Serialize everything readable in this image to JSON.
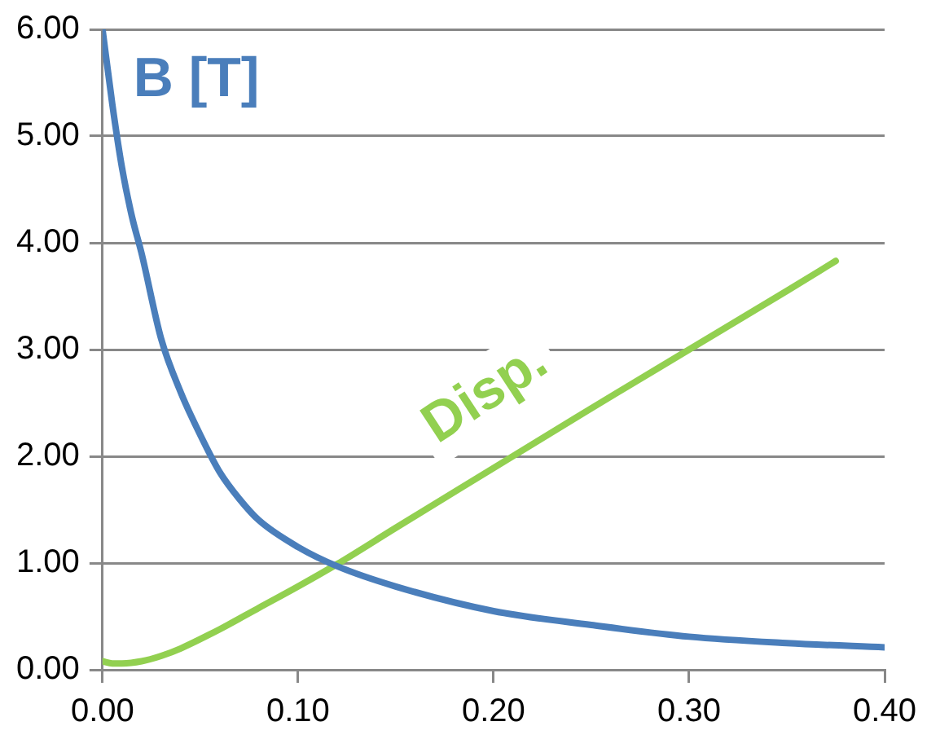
{
  "chart_data": {
    "type": "line",
    "xlim": [
      0,
      0.4
    ],
    "xticks": [
      {
        "value": 0,
        "label": "0.00"
      },
      {
        "value": 0.1,
        "label": "0.10"
      },
      {
        "value": 0.2,
        "label": "0.20"
      },
      {
        "value": 0.3,
        "label": "0.30"
      },
      {
        "value": 0.4,
        "label": "0.40"
      }
    ],
    "ylim": [
      0,
      6
    ],
    "yticks": [
      {
        "value": 0,
        "label": "0.00"
      },
      {
        "value": 1,
        "label": "1.00"
      },
      {
        "value": 2,
        "label": "2.00"
      },
      {
        "value": 3,
        "label": "3.00"
      },
      {
        "value": 4,
        "label": "4.00"
      },
      {
        "value": 5,
        "label": "5.00"
      },
      {
        "value": 6,
        "label": "6.00"
      }
    ],
    "grid": "y",
    "marker": "none",
    "line_style": "solid",
    "legend": false,
    "series": [
      {
        "name": "B [T]",
        "color": "#4a7ebb",
        "x": [
          0,
          0.005,
          0.01,
          0.015,
          0.02,
          0.03,
          0.04,
          0.05,
          0.06,
          0.07,
          0.08,
          0.1,
          0.12,
          0.15,
          0.2,
          0.25,
          0.3,
          0.35,
          0.4
        ],
        "values": [
          6.0,
          5.3,
          4.7,
          4.25,
          3.9,
          3.1,
          2.6,
          2.2,
          1.85,
          1.6,
          1.4,
          1.15,
          0.97,
          0.78,
          0.55,
          0.42,
          0.31,
          0.25,
          0.21
        ]
      },
      {
        "name": "Disp.",
        "color": "#92d050",
        "x": [
          0,
          0.005,
          0.01,
          0.02,
          0.03,
          0.04,
          0.06,
          0.08,
          0.1,
          0.12,
          0.15,
          0.2,
          0.25,
          0.3,
          0.35,
          0.375
        ],
        "values": [
          0.08,
          0.06,
          0.06,
          0.08,
          0.13,
          0.2,
          0.38,
          0.58,
          0.78,
          0.99,
          1.33,
          1.89,
          2.45,
          3.0,
          3.55,
          3.83
        ]
      }
    ]
  }
}
